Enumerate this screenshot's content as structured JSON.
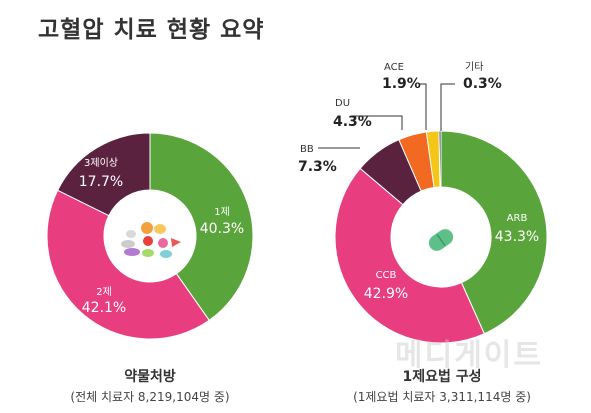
{
  "page": {
    "title": "고혈압 치료 현황 요약"
  },
  "chart_data": [
    {
      "type": "pie",
      "title": "약물처방",
      "subtitle": "(전체 치료자 8,219,104명 중)",
      "slices": [
        {
          "label": "1제",
          "value": 40.3,
          "display": "40.3%",
          "color": "#5aa53b"
        },
        {
          "label": "2제",
          "value": 42.1,
          "display": "42.1%",
          "color": "#e83e7f"
        },
        {
          "label": "3제이상",
          "value": 17.7,
          "display": "17.7%",
          "color": "#5b2240"
        }
      ]
    },
    {
      "type": "pie",
      "title": "1제요법 구성",
      "subtitle": "(1제요법 치료자 3,311,114명 중)",
      "slices": [
        {
          "label": "ARB",
          "value": 43.3,
          "display": "43.3%",
          "color": "#5aa53b"
        },
        {
          "label": "CCB",
          "value": 42.9,
          "display": "42.9%",
          "color": "#e83e7f"
        },
        {
          "label": "BB",
          "value": 7.3,
          "display": "7.3%",
          "color": "#5b2240"
        },
        {
          "label": "DU",
          "value": 4.3,
          "display": "4.3%",
          "color": "#f26a21"
        },
        {
          "label": "ACE",
          "value": 1.9,
          "display": "1.9%",
          "color": "#f5c518"
        },
        {
          "label": "기타",
          "value": 0.3,
          "display": "0.3%",
          "color": "#1f3a6b"
        }
      ]
    }
  ],
  "watermark": "메디게이트"
}
